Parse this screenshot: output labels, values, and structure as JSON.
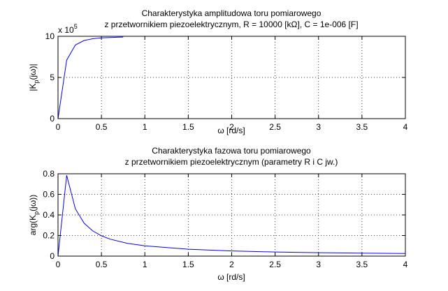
{
  "chart_data": [
    {
      "type": "line",
      "title_line1": "Charakterystyka amplitudowa toru pomiarowego",
      "title_line2": "z przetwornikiem piezoelektrycznym, R = 10000 [kΩ], C = 1e-006 [F]",
      "xlabel": "ω [rd/s]",
      "ylabel": "|K_p(jω)|",
      "y_multiplier": "x 10^5",
      "xlim": [
        0,
        4
      ],
      "ylim": [
        0,
        10
      ],
      "xticks": [
        "0",
        "0.5",
        "1",
        "1.5",
        "2",
        "2.5",
        "3",
        "3.5",
        "4"
      ],
      "yticks": [
        "0",
        "5",
        "10"
      ],
      "grid": true,
      "series": [
        {
          "color": "#0000ff",
          "x": [
            0,
            0.1,
            0.2,
            0.3,
            0.4,
            0.5,
            0.6,
            0.7,
            0.75
          ],
          "y": [
            0,
            7.1,
            8.94,
            9.49,
            9.7,
            9.81,
            9.86,
            9.9,
            9.91
          ]
        }
      ]
    },
    {
      "type": "line",
      "title_line1": "Charakterystyka fazowa toru pomiarowego",
      "title_line2": "z przetwornikiem piezoelektrycznym (parametry R i C jw.)",
      "xlabel": "ω [rd/s]",
      "ylabel": "arg(K_p(jω))",
      "xlim": [
        0,
        4
      ],
      "ylim": [
        0,
        0.8
      ],
      "xticks": [
        "0",
        "0.5",
        "1",
        "1.5",
        "2",
        "2.5",
        "3",
        "3.5",
        "4"
      ],
      "yticks": [
        "0",
        "0.2",
        "0.4",
        "0.6",
        "0.8"
      ],
      "grid": true,
      "series": [
        {
          "color": "#0000ff",
          "x": [
            0,
            0.1,
            0.2,
            0.3,
            0.4,
            0.5,
            0.6,
            0.8,
            1.0,
            1.5,
            2.0,
            2.5,
            3.0,
            3.5,
            4.0
          ],
          "y": [
            0,
            0.785,
            0.46,
            0.32,
            0.245,
            0.197,
            0.165,
            0.124,
            0.1,
            0.067,
            0.05,
            0.04,
            0.033,
            0.029,
            0.025
          ]
        }
      ]
    }
  ]
}
